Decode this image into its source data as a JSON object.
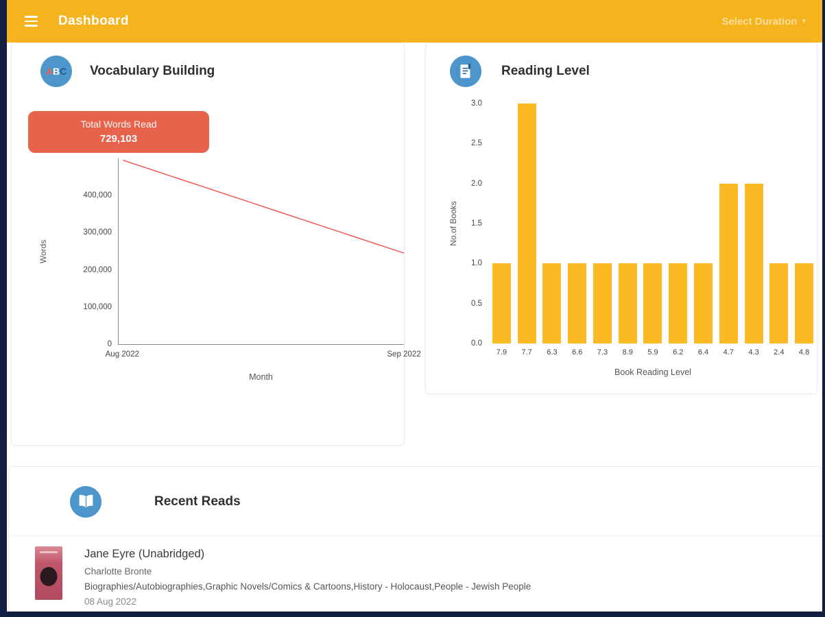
{
  "header": {
    "title": "Dashboard",
    "duration_label": "Select Duration",
    "caret": "▾"
  },
  "vocab": {
    "title": "Vocabulary Building",
    "icon_a": "A",
    "icon_b": "B",
    "icon_c": "C",
    "badge_line1": "Total Words Read",
    "badge_value": "729,103"
  },
  "reading": {
    "title": "Reading Level"
  },
  "recent": {
    "title": "Recent Reads",
    "books": [
      {
        "title": "Jane Eyre (Unabridged)",
        "author": "Charlotte Bronte",
        "genres": "Biographies/Autobiographies,Graphic Novels/Comics & Cartoons,History - Holocaust,People - Jewish People",
        "date": "08 Aug 2022"
      }
    ]
  },
  "colors": {
    "header_bg": "#F5B41E",
    "badge_bg": "#E8634C",
    "line_color": "#F0584C",
    "bar_color": "#FBB924",
    "icon_circle": "#4D96CB",
    "frame_dark": "#111E42"
  },
  "chart_data": [
    {
      "type": "line",
      "title": "Vocabulary Building",
      "x": [
        "Aug 2022",
        "Sep 2022"
      ],
      "series": [
        {
          "name": "Words",
          "values": [
            495000,
            245000
          ]
        }
      ],
      "xlabel": "Month",
      "ylabel": "Words",
      "ylim": [
        0,
        500000
      ],
      "yticks": [
        0,
        100000,
        200000,
        300000,
        400000
      ],
      "grid": false,
      "legend": false
    },
    {
      "type": "bar",
      "title": "Reading Level",
      "categories": [
        "7.9",
        "7.7",
        "6.3",
        "6.6",
        "7.3",
        "8.9",
        "5.9",
        "6.2",
        "6.4",
        "4.7",
        "4.3",
        "2.4",
        "4.8"
      ],
      "values": [
        1,
        3,
        1,
        1,
        1,
        1,
        1,
        1,
        1,
        2,
        2,
        1,
        1
      ],
      "xlabel": "Book Reading Level",
      "ylabel": "No.of Books",
      "ylim": [
        0,
        3
      ],
      "yticks": [
        0,
        0.5,
        1,
        1.5,
        2,
        2.5,
        3
      ],
      "grid": false,
      "legend": false
    }
  ]
}
